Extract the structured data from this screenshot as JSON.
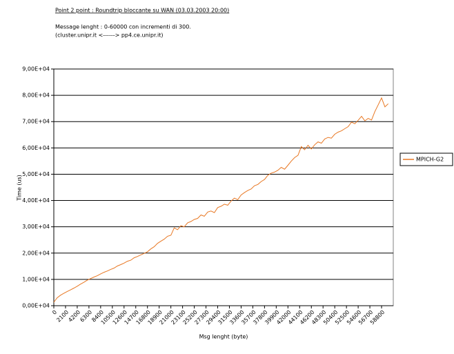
{
  "chart_data": {
    "type": "line",
    "title": "Point 2 point : Roundtrip bloccante su WAN (03.03.2003 20:00)",
    "notes": [
      "Message lenght :  0-60000 con incrementi di 300.",
      "(cluster.unipr.it    <------>  pp4.ce.unipr.it)"
    ],
    "x_label": "Msg lenght (byte)",
    "y_label": "Time (us)",
    "x": [
      0,
      600,
      1200,
      1800,
      2400,
      3000,
      3600,
      4200,
      4800,
      5400,
      6000,
      6600,
      7200,
      7800,
      8400,
      9000,
      9600,
      10200,
      10800,
      11400,
      12000,
      12600,
      13200,
      13800,
      14400,
      15000,
      15600,
      16200,
      16800,
      17400,
      18000,
      18600,
      19200,
      19800,
      20400,
      21000,
      21600,
      22200,
      22800,
      23400,
      24000,
      24600,
      25200,
      25800,
      26400,
      27000,
      27600,
      28200,
      28800,
      29400,
      30000,
      30600,
      31200,
      31800,
      32400,
      33000,
      33600,
      34200,
      34800,
      35400,
      36000,
      36600,
      37200,
      37800,
      38400,
      39000,
      39600,
      40200,
      40800,
      41400,
      42000,
      42600,
      43200,
      43800,
      44400,
      45000,
      45600,
      46200,
      46800,
      47400,
      48000,
      48600,
      49200,
      49800,
      50400,
      51000,
      51600,
      52200,
      52800,
      53400,
      54000,
      54600,
      55200,
      55800,
      56400,
      57000,
      57600,
      58200,
      58800,
      59400,
      60000
    ],
    "series": [
      {
        "name": "MPICH-G2",
        "color": "#e87722",
        "values": [
          1300,
          3000,
          4000,
          4700,
          5400,
          6000,
          6700,
          7400,
          8200,
          8900,
          9700,
          10300,
          10900,
          11400,
          12100,
          12700,
          13200,
          13800,
          14300,
          15100,
          15600,
          16200,
          16900,
          17300,
          18200,
          18700,
          19300,
          19900,
          20500,
          21600,
          22400,
          23700,
          24500,
          25300,
          26400,
          26800,
          29600,
          28900,
          30400,
          30000,
          31500,
          32000,
          32800,
          33200,
          34500,
          34000,
          35600,
          36000,
          35400,
          37300,
          37800,
          38600,
          38200,
          39800,
          40900,
          40300,
          42100,
          43000,
          43800,
          44400,
          45600,
          46100,
          47200,
          48000,
          49600,
          50400,
          50800,
          51500,
          52600,
          51900,
          53400,
          55000,
          56300,
          57200,
          60500,
          59300,
          61000,
          59600,
          61200,
          62300,
          61800,
          63400,
          64000,
          63700,
          65200,
          66000,
          66500,
          67300,
          68100,
          69800,
          69200,
          70500,
          72000,
          70300,
          71200,
          70600,
          73800,
          76400,
          79000,
          75600,
          76800
        ]
      }
    ],
    "xlim": [
      0,
      60900
    ],
    "xticks": [
      0,
      2100,
      4200,
      6300,
      8400,
      10500,
      12600,
      14700,
      16800,
      18900,
      21000,
      23100,
      25200,
      27300,
      29400,
      31500,
      33600,
      35700,
      37800,
      39900,
      42000,
      44100,
      46200,
      48300,
      50400,
      52500,
      54600,
      56700,
      58800
    ],
    "ylim": [
      0,
      90000
    ],
    "yticks": [
      {
        "value": 0,
        "label": "0,00E+04"
      },
      {
        "value": 10000,
        "label": "1,00E+04"
      },
      {
        "value": 20000,
        "label": "2,00E+04"
      },
      {
        "value": 30000,
        "label": "3,00E+04"
      },
      {
        "value": 40000,
        "label": "4,00E+04"
      },
      {
        "value": 50000,
        "label": "5,00E+04"
      },
      {
        "value": 60000,
        "label": "6,00E+04"
      },
      {
        "value": 70000,
        "label": "7,00E+04"
      },
      {
        "value": 80000,
        "label": "8,00E+04"
      },
      {
        "value": 90000,
        "label": "9,00E+04"
      }
    ],
    "grid": true,
    "legend": "right"
  }
}
